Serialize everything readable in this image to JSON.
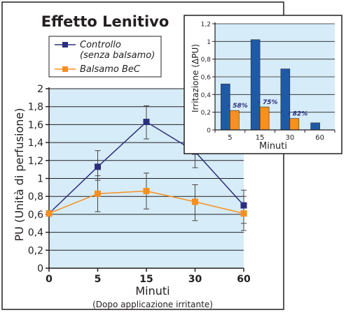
{
  "colors": {
    "controllo": "#2b2f7f",
    "balsamo": "#f7901e",
    "bar_blue": "#1f5aa6",
    "plot_bg": "#d6ecf8",
    "frame": "#231f20"
  },
  "chart_data": [
    {
      "type": "line",
      "title": "Effetto Lenitivo",
      "xlabel": "Minuti",
      "xlabel_note": "(Dopo applicazione irritante)",
      "ylabel": "PU (Unità di perfusione)",
      "categories": [
        "0",
        "5",
        "15",
        "30",
        "60"
      ],
      "ylim": [
        0,
        2
      ],
      "yticks": [
        "0",
        "0,2",
        "0,4",
        "0,6",
        "0,8",
        "1",
        "1,2",
        "1,4",
        "1,6",
        "1,8",
        "2"
      ],
      "grid": true,
      "legend_position": "top-left",
      "series": [
        {
          "name": "Controllo",
          "name_line2": "(senza balsamo)",
          "values": [
            0.61,
            1.13,
            1.63,
            1.3,
            0.7
          ],
          "error_low": [
            0.61,
            0.98,
            1.44,
            1.12,
            0.5
          ],
          "error_high": [
            0.61,
            1.31,
            1.81,
            1.48,
            0.87
          ]
        },
        {
          "name": "Balsamo BeC",
          "values": [
            0.61,
            0.83,
            0.86,
            0.74,
            0.61
          ],
          "error_low": [
            0.61,
            0.63,
            0.66,
            0.53,
            0.42
          ],
          "error_high": [
            0.61,
            1.03,
            1.06,
            0.93,
            0.8
          ]
        }
      ]
    },
    {
      "type": "bar",
      "xlabel": "Minuti",
      "ylabel": "Irritazione (ΔPU)",
      "categories": [
        "5",
        "15",
        "30",
        "60"
      ],
      "ylim": [
        0,
        1.2
      ],
      "yticks": [
        "0",
        "0,2",
        "0,4",
        "0,6",
        "0,8",
        "1",
        "1,2"
      ],
      "grid": true,
      "series": [
        {
          "name": "Controllo",
          "values": [
            0.52,
            1.02,
            0.69,
            0.08
          ]
        },
        {
          "name": "Balsamo BeC",
          "values": [
            0.22,
            0.26,
            0.13,
            0.0
          ]
        }
      ],
      "annotations": [
        "- 58%",
        "- 75%",
        "- 82%"
      ]
    }
  ]
}
